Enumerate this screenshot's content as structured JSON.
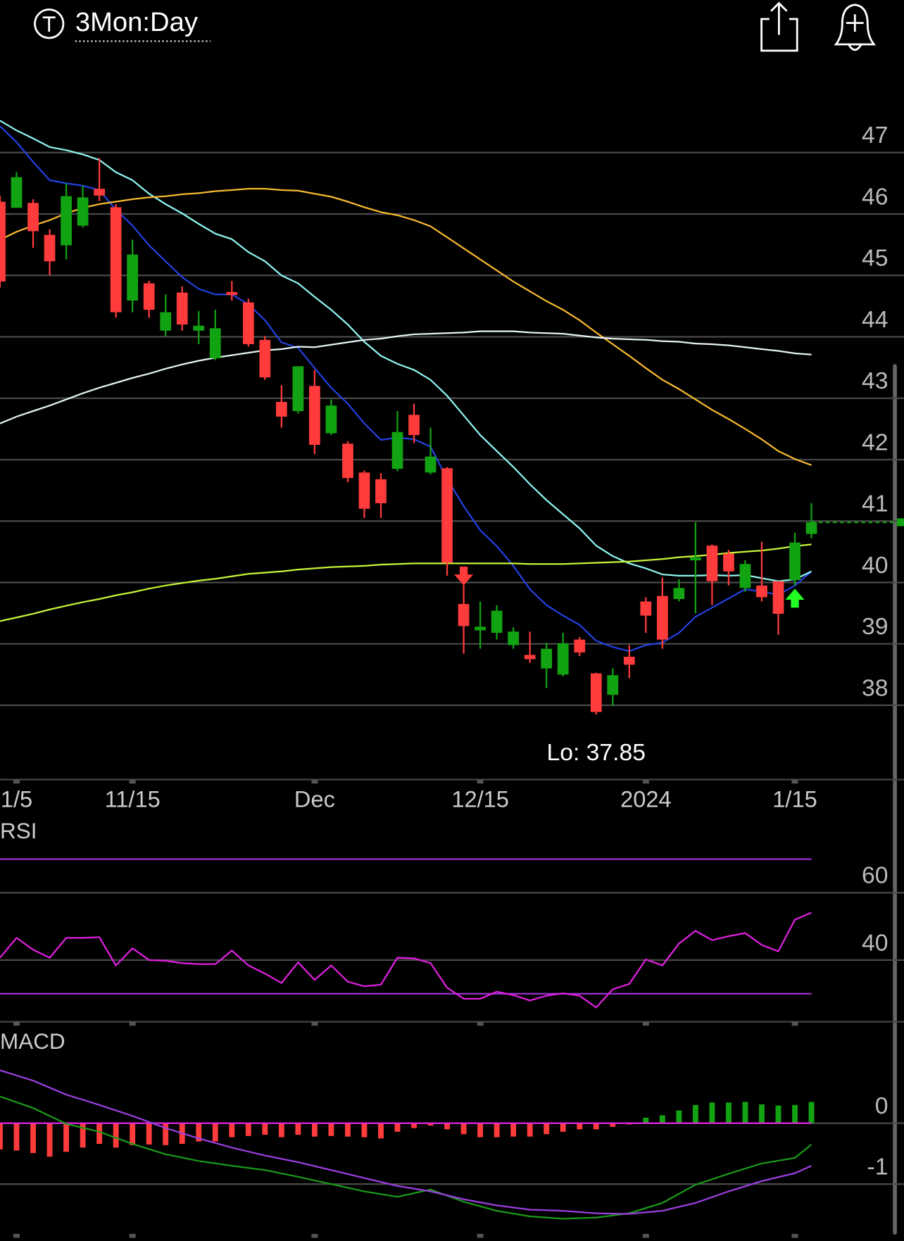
{
  "chart_data": {
    "type": "candlestick",
    "title": "3Mon:Day",
    "categories": [
      null,
      "1/5",
      null,
      null,
      null,
      null,
      null,
      null,
      "11/15",
      null,
      null,
      null,
      null,
      null,
      null,
      null,
      null,
      null,
      null,
      "Dec",
      null,
      null,
      null,
      null,
      null,
      null,
      null,
      null,
      null,
      "12/15",
      null,
      null,
      null,
      null,
      null,
      null,
      null,
      null,
      null,
      "2024",
      null,
      null,
      null,
      null,
      null,
      null,
      null,
      null,
      "1/15",
      null
    ],
    "open": [
      46.2,
      46.1,
      46.18,
      45.66,
      45.49,
      45.81,
      46.41,
      46.11,
      44.59,
      44.87,
      44.1,
      44.72,
      44.1,
      43.65,
      44.73,
      44.56,
      43.95,
      42.94,
      42.79,
      43.2,
      42.43,
      42.26,
      41.79,
      41.68,
      41.85,
      42.73,
      41.79,
      41.86,
      39.65,
      39.22,
      39.18,
      38.98,
      38.82,
      38.6,
      38.5,
      39.07,
      38.52,
      38.17,
      38.79,
      39.69,
      39.78,
      39.73,
      40.36,
      40.6,
      40.47,
      39.91,
      39.95,
      40.02,
      40.04,
      40.79
    ],
    "high": [
      46.3,
      46.68,
      46.24,
      45.75,
      46.5,
      46.46,
      46.91,
      46.16,
      45.58,
      44.91,
      44.69,
      44.82,
      44.42,
      44.44,
      44.91,
      44.62,
      44.01,
      43.21,
      43.52,
      43.46,
      42.98,
      42.3,
      41.82,
      41.78,
      42.79,
      42.91,
      42.52,
      41.88,
      39.95,
      39.69,
      39.63,
      39.27,
      39.2,
      39.02,
      39.18,
      39.11,
      38.53,
      38.6,
      38.98,
      39.76,
      40.08,
      40.05,
      40.98,
      40.62,
      40.53,
      40.36,
      40.66,
      40.02,
      40.81,
      41.29
    ],
    "low": [
      44.8,
      46.1,
      45.45,
      45.0,
      45.26,
      45.78,
      46.21,
      44.31,
      44.4,
      44.31,
      44.01,
      44.1,
      43.88,
      43.62,
      44.59,
      43.84,
      43.3,
      42.52,
      42.75,
      42.09,
      42.4,
      41.63,
      41.05,
      41.05,
      41.81,
      42.27,
      41.76,
      40.11,
      38.84,
      38.92,
      39.07,
      38.92,
      38.69,
      38.28,
      38.47,
      38.8,
      37.85,
      37.99,
      38.44,
      39.18,
      38.92,
      39.69,
      39.5,
      39.63,
      39.95,
      39.85,
      39.69,
      39.15,
      39.95,
      40.72
    ],
    "close": [
      44.9,
      46.6,
      45.72,
      45.23,
      46.29,
      46.27,
      46.3,
      44.4,
      45.34,
      44.44,
      44.4,
      44.2,
      44.18,
      44.14,
      44.68,
      43.88,
      43.34,
      42.7,
      43.52,
      42.24,
      42.88,
      41.7,
      41.2,
      41.29,
      42.45,
      42.4,
      42.05,
      40.32,
      39.29,
      39.28,
      39.54,
      39.2,
      38.75,
      38.92,
      39.01,
      38.86,
      37.89,
      38.49,
      38.66,
      39.46,
      39.07,
      39.91,
      40.41,
      40.02,
      40.18,
      40.3,
      39.76,
      39.49,
      40.65,
      40.98
    ],
    "up_color": "#12a312",
    "down_color": "#ff3b3b",
    "ylim": [
      36.79,
      47.68
    ],
    "yticks": [
      38,
      39,
      40,
      41,
      42,
      43,
      44,
      45,
      46,
      47
    ],
    "grid": true,
    "overlays": [
      {
        "color": "#2340e0",
        "values": [
          47.43,
          47.17,
          46.85,
          46.55,
          46.5,
          46.46,
          46.39,
          46.07,
          45.81,
          45.49,
          45.23,
          44.97,
          44.78,
          44.69,
          44.69,
          44.53,
          44.27,
          43.91,
          43.82,
          43.49,
          43.17,
          42.91,
          42.59,
          42.32,
          42.36,
          42.33,
          42.21,
          41.69,
          41.24,
          40.85,
          40.59,
          40.27,
          39.89,
          39.63,
          39.46,
          39.31,
          39.05,
          38.95,
          38.88,
          38.98,
          39.02,
          39.18,
          39.44,
          39.59,
          39.74,
          39.89,
          39.85,
          39.8,
          39.95,
          40.18
        ]
      },
      {
        "color": "#8ff5ef",
        "values": [
          47.52,
          47.36,
          47.23,
          47.09,
          47.04,
          46.97,
          46.88,
          46.68,
          46.55,
          46.33,
          46.16,
          46.01,
          45.84,
          45.68,
          45.59,
          45.38,
          45.23,
          45.0,
          44.87,
          44.65,
          44.44,
          44.2,
          43.92,
          43.69,
          43.56,
          43.46,
          43.3,
          43.04,
          42.72,
          42.4,
          42.14,
          41.88,
          41.6,
          41.34,
          41.11,
          40.88,
          40.6,
          40.43,
          40.31,
          40.23,
          40.13,
          40.11,
          40.11,
          40.12,
          40.11,
          40.12,
          40.07,
          40.02,
          40.05,
          40.18
        ]
      },
      {
        "color": "#f6b92e",
        "values": [
          45.58,
          45.71,
          45.81,
          45.9,
          46.01,
          46.1,
          46.16,
          46.2,
          46.24,
          46.27,
          46.29,
          46.32,
          46.34,
          46.37,
          46.39,
          46.41,
          46.41,
          46.39,
          46.38,
          46.33,
          46.28,
          46.2,
          46.11,
          46.03,
          45.98,
          45.9,
          45.8,
          45.62,
          45.44,
          45.26,
          45.08,
          44.9,
          44.74,
          44.58,
          44.44,
          44.27,
          44.07,
          43.88,
          43.69,
          43.49,
          43.3,
          43.15,
          42.98,
          42.81,
          42.66,
          42.5,
          42.33,
          42.14,
          42.01,
          41.91
        ]
      },
      {
        "color": "#e6f4f4",
        "values": [
          42.59,
          42.7,
          42.79,
          42.88,
          42.98,
          43.08,
          43.17,
          43.25,
          43.33,
          43.4,
          43.48,
          43.55,
          43.61,
          43.66,
          43.7,
          43.74,
          43.78,
          43.8,
          43.84,
          43.83,
          43.87,
          43.91,
          43.95,
          43.97,
          44.01,
          44.04,
          44.05,
          44.06,
          44.07,
          44.09,
          44.09,
          44.09,
          44.07,
          44.06,
          44.05,
          44.02,
          43.99,
          43.97,
          43.96,
          43.95,
          43.93,
          43.92,
          43.89,
          43.88,
          43.86,
          43.83,
          43.8,
          43.77,
          43.73,
          43.71
        ]
      },
      {
        "color": "#c8f53a",
        "values": [
          39.37,
          39.43,
          39.49,
          39.56,
          39.62,
          39.68,
          39.73,
          39.79,
          39.84,
          39.9,
          39.95,
          39.99,
          40.03,
          40.06,
          40.1,
          40.14,
          40.16,
          40.18,
          40.21,
          40.23,
          40.25,
          40.26,
          40.27,
          40.29,
          40.3,
          40.31,
          40.31,
          40.31,
          40.31,
          40.31,
          40.31,
          40.31,
          40.3,
          40.3,
          40.3,
          40.31,
          40.32,
          40.33,
          40.34,
          40.36,
          40.38,
          40.41,
          40.43,
          40.45,
          40.48,
          40.5,
          40.52,
          40.55,
          40.59,
          40.62
        ]
      }
    ],
    "annotation": {
      "text": "Lo: 37.85",
      "index": 36
    },
    "sell_signals": [
      28
    ],
    "buy_signals": [
      48
    ],
    "panels": [
      {
        "title": "RSI",
        "color": "#e020e0",
        "values": [
          40.7,
          46.6,
          43.1,
          40.7,
          46.6,
          46.6,
          46.8,
          38.4,
          43.5,
          40.0,
          39.8,
          39.1,
          38.8,
          38.8,
          42.8,
          38.4,
          36.0,
          33.2,
          39.3,
          34.1,
          38.4,
          33.6,
          32.2,
          32.7,
          40.7,
          40.5,
          39.1,
          31.8,
          28.5,
          28.5,
          30.6,
          29.6,
          28.0,
          29.4,
          30.1,
          29.4,
          25.9,
          31.3,
          32.9,
          40.2,
          38.4,
          44.9,
          48.7,
          45.9,
          47.1,
          48.0,
          44.5,
          42.6,
          52.0,
          54.1
        ],
        "bands": [
          70,
          30
        ],
        "band_color": "#9b30d0",
        "ylim": [
          21.9,
          80.7
        ],
        "yticks": [
          60,
          40
        ]
      },
      {
        "title": "MACD",
        "histogram": [
          -0.43,
          -0.45,
          -0.49,
          -0.55,
          -0.47,
          -0.4,
          -0.34,
          -0.4,
          -0.36,
          -0.35,
          -0.36,
          -0.34,
          -0.3,
          -0.3,
          -0.23,
          -0.21,
          -0.19,
          -0.23,
          -0.19,
          -0.22,
          -0.21,
          -0.22,
          -0.23,
          -0.25,
          -0.14,
          -0.08,
          -0.04,
          -0.1,
          -0.18,
          -0.23,
          -0.23,
          -0.22,
          -0.22,
          -0.18,
          -0.14,
          -0.1,
          -0.1,
          -0.06,
          -0.02,
          0.09,
          0.13,
          0.21,
          0.3,
          0.34,
          0.34,
          0.35,
          0.31,
          0.29,
          0.3,
          0.35
        ],
        "macd": {
          "color": "#1a9a1a",
          "x": [
            0,
            2,
            4,
            6,
            8,
            10,
            12,
            14,
            16,
            18,
            20,
            22,
            24,
            26,
            28,
            30,
            32,
            34,
            36,
            38,
            40,
            42,
            44,
            46,
            48,
            49
          ],
          "values": [
            0.44,
            0.25,
            -0.01,
            -0.14,
            -0.34,
            -0.51,
            -0.62,
            -0.7,
            -0.77,
            -0.88,
            -1.0,
            -1.12,
            -1.21,
            -1.09,
            -1.29,
            -1.44,
            -1.53,
            -1.57,
            -1.55,
            -1.48,
            -1.31,
            -1.01,
            -0.83,
            -0.66,
            -0.57,
            -0.35
          ]
        },
        "signal": {
          "color": "#9b3ee0",
          "x": [
            0,
            2,
            4,
            6,
            8,
            10,
            12,
            14,
            16,
            18,
            20,
            22,
            24,
            26,
            28,
            30,
            32,
            34,
            36,
            38,
            40,
            42,
            44,
            46,
            48,
            49
          ],
          "values": [
            0.87,
            0.7,
            0.47,
            0.3,
            0.12,
            -0.08,
            -0.25,
            -0.4,
            -0.53,
            -0.64,
            -0.77,
            -0.9,
            -1.03,
            -1.12,
            -1.25,
            -1.35,
            -1.42,
            -1.44,
            -1.48,
            -1.49,
            -1.44,
            -1.31,
            -1.12,
            -0.95,
            -0.82,
            -0.7
          ]
        },
        "zero_color": "#e020e0",
        "ylim": [
          -1.87,
          1.55
        ],
        "yticks": [
          0,
          -1
        ]
      }
    ]
  }
}
